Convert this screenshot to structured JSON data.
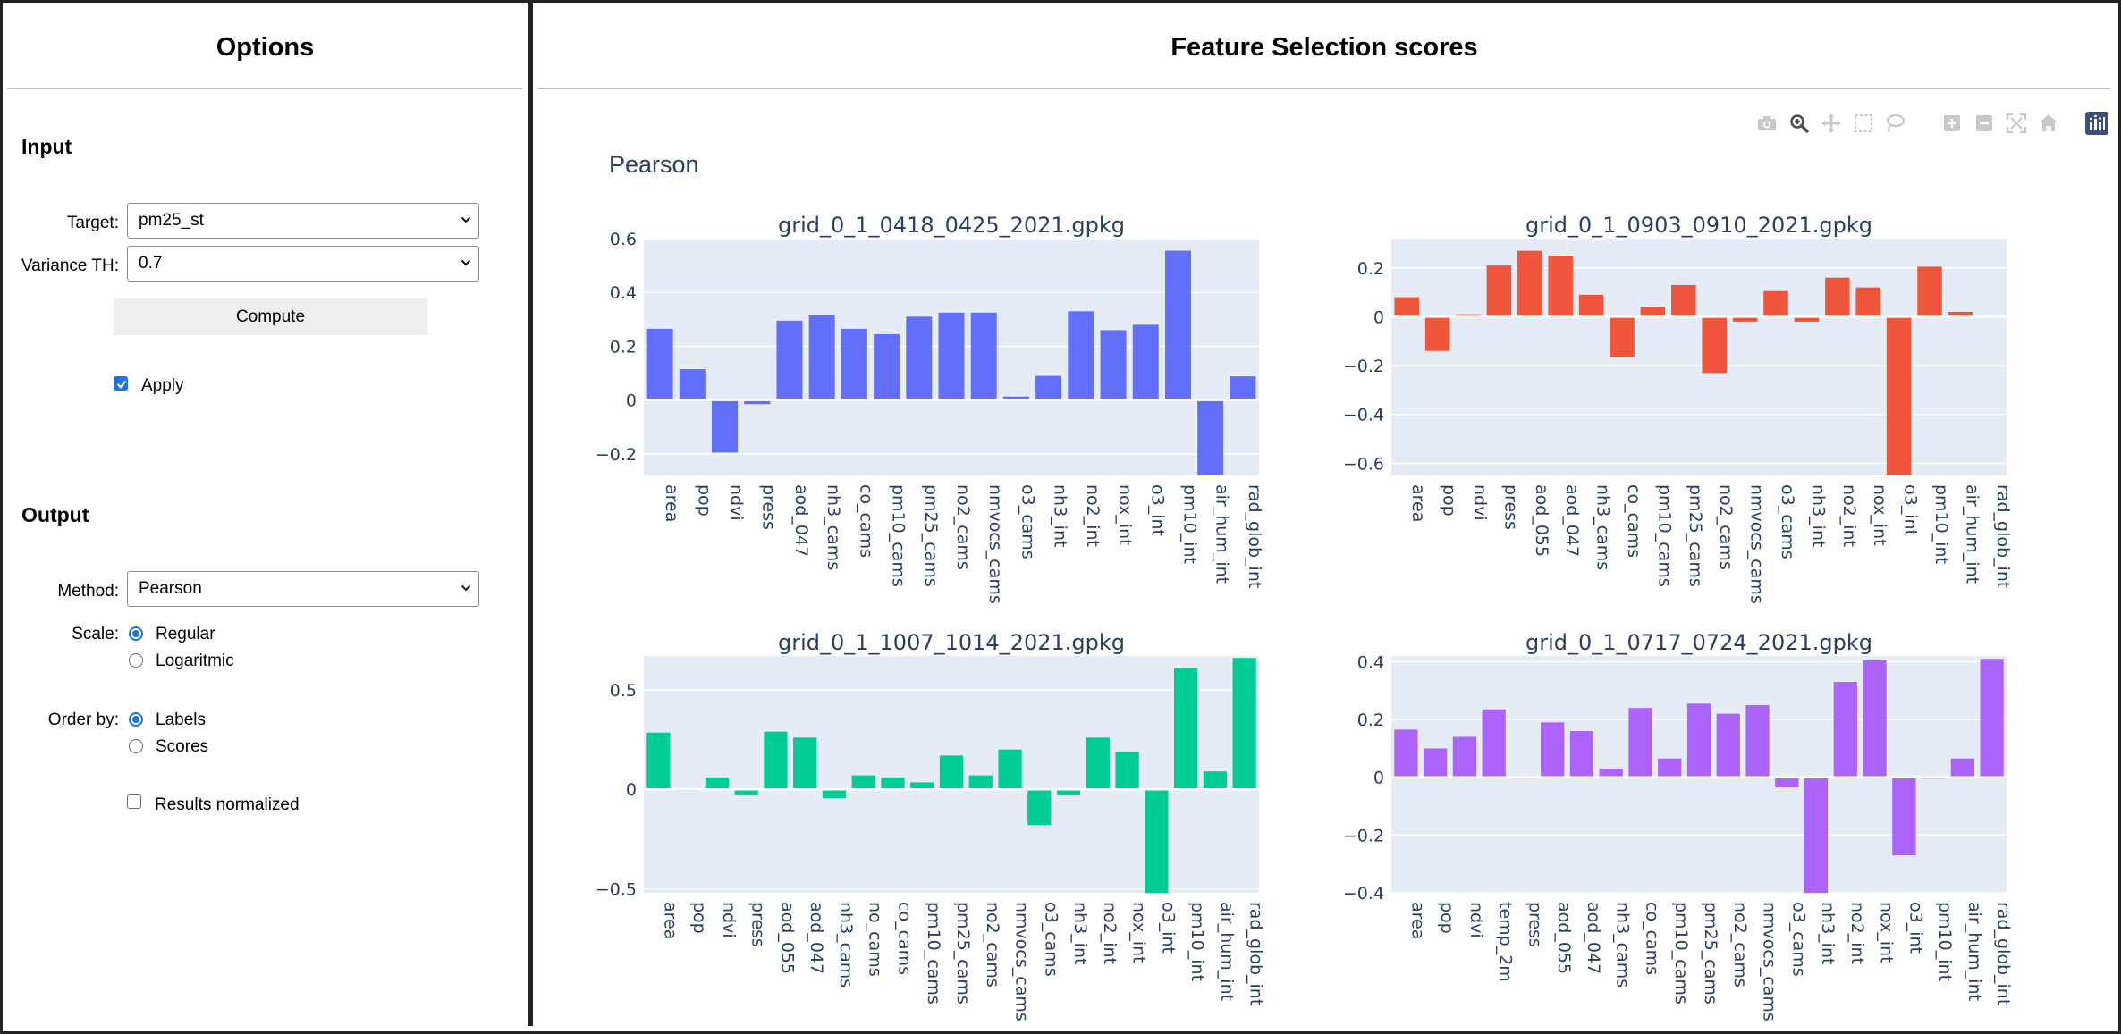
{
  "options_panel": {
    "title": "Options",
    "input": {
      "heading": "Input",
      "target_label": "Target:",
      "target_value": "pm25_st",
      "variance_label": "Variance TH:",
      "variance_value": "0.7",
      "compute_label": "Compute",
      "apply_label": "Apply",
      "apply_checked": true
    },
    "output": {
      "heading": "Output",
      "method_label": "Method:",
      "method_value": "Pearson",
      "scale_label": "Scale:",
      "scale_options": [
        "Regular",
        "Logaritmic"
      ],
      "scale_selected": "Regular",
      "order_label": "Order by:",
      "order_options": [
        "Labels",
        "Scores"
      ],
      "order_selected": "Labels",
      "normalized_label": "Results normalized",
      "normalized_checked": false
    }
  },
  "results_panel": {
    "title": "Feature Selection scores",
    "method_title": "Pearson",
    "modebar_icons": [
      "camera-icon",
      "zoom-icon",
      "pan-icon",
      "box-select-icon",
      "lasso-icon",
      "zoom-in-icon",
      "zoom-out-icon",
      "autoscale-icon",
      "reset-axes-icon",
      "plotly-logo-icon"
    ]
  },
  "colors": {
    "plot_bg": "#e5ecf6",
    "axis_text": "#2a3f5f",
    "accent": "#1a73e8"
  },
  "chart_data": [
    {
      "type": "bar",
      "title": "grid_0_1_0418_0425_2021.gpkg",
      "color": "#636efa",
      "ylim": [
        -0.28,
        0.6
      ],
      "yticks": [
        -0.2,
        0,
        0.2,
        0.4,
        0.6
      ],
      "ytick_labels": [
        "−0.2",
        "0",
        "0.2",
        "0.4",
        "0.6"
      ],
      "categories": [
        "area",
        "pop",
        "ndvi",
        "press",
        "aod_047",
        "nh3_cams",
        "co_cams",
        "pm10_cams",
        "pm25_cams",
        "no2_cams",
        "nmvocs_cams",
        "o3_cams",
        "nh3_int",
        "no2_int",
        "nox_int",
        "o3_int",
        "pm10_int",
        "air_hum_int",
        "rad_glob_int"
      ],
      "values": [
        0.265,
        0.115,
        -0.195,
        -0.015,
        0.295,
        0.315,
        0.265,
        0.245,
        0.31,
        0.325,
        0.325,
        0.013,
        0.09,
        0.33,
        0.26,
        0.28,
        0.555,
        -0.28,
        0.088
      ]
    },
    {
      "type": "bar",
      "title": "grid_0_1_0903_0910_2021.gpkg",
      "color": "#ef553b",
      "ylim": [
        -0.65,
        0.32
      ],
      "yticks": [
        -0.6,
        -0.4,
        -0.2,
        0,
        0.2
      ],
      "ytick_labels": [
        "−0.6",
        "−0.4",
        "−0.2",
        "0",
        "0.2"
      ],
      "categories": [
        "area",
        "pop",
        "ndvi",
        "press",
        "aod_055",
        "aod_047",
        "nh3_cams",
        "co_cams",
        "pm10_cams",
        "pm25_cams",
        "no2_cams",
        "nmvocs_cams",
        "o3_cams",
        "nh3_int",
        "no2_int",
        "nox_int",
        "o3_int",
        "pm10_int",
        "air_hum_int",
        "rad_glob_int"
      ],
      "values": [
        0.08,
        -0.14,
        0.01,
        0.21,
        0.27,
        0.25,
        0.09,
        -0.165,
        0.04,
        0.13,
        -0.23,
        -0.02,
        0.105,
        -0.02,
        0.16,
        0.12,
        -0.65,
        0.205,
        0.02,
        0
      ]
    },
    {
      "type": "bar",
      "title": "grid_0_1_1007_1014_2021.gpkg",
      "color": "#00cc96",
      "ylim": [
        -0.52,
        0.67
      ],
      "yticks": [
        -0.5,
        0,
        0.5
      ],
      "ytick_labels": [
        "−0.5",
        "0",
        "0.5"
      ],
      "categories": [
        "area",
        "pop",
        "ndvi",
        "press",
        "aod_055",
        "aod_047",
        "nh3_cams",
        "no_cams",
        "co_cams",
        "pm10_cams",
        "pm25_cams",
        "no2_cams",
        "nmvocs_cams",
        "o3_cams",
        "nh3_int",
        "no2_int",
        "nox_int",
        "o3_int",
        "pm10_int",
        "air_hum_int",
        "rad_glob_int"
      ],
      "values": [
        0.285,
        -0.005,
        0.06,
        -0.03,
        0.29,
        0.26,
        -0.045,
        0.07,
        0.06,
        0.035,
        0.17,
        0.07,
        0.2,
        -0.18,
        -0.03,
        0.26,
        0.19,
        -0.52,
        0.61,
        0.09,
        0.66
      ]
    },
    {
      "type": "bar",
      "title": "grid_0_1_0717_0724_2021.gpkg",
      "color": "#ab63fa",
      "ylim": [
        -0.4,
        0.42
      ],
      "yticks": [
        -0.4,
        -0.2,
        0,
        0.2,
        0.4
      ],
      "ytick_labels": [
        "−0.4",
        "−0.2",
        "0",
        "0.2",
        "0.4"
      ],
      "categories": [
        "area",
        "pop",
        "ndvi",
        "temp_2m",
        "press",
        "aod_055",
        "aod_047",
        "nh3_cams",
        "co_cams",
        "pm10_cams",
        "pm25_cams",
        "no2_cams",
        "nmvocs_cams",
        "o3_cams",
        "nh3_int",
        "no2_int",
        "nox_int",
        "o3_int",
        "pm10_int",
        "air_hum_int",
        "rad_glob_int"
      ],
      "values": [
        0.165,
        0.1,
        0.14,
        0.235,
        0,
        0.19,
        0.16,
        0.03,
        0.24,
        0.065,
        0.255,
        0.22,
        0.25,
        -0.035,
        -0.4,
        0.33,
        0.405,
        -0.27,
        -0.005,
        0.065,
        0.41
      ]
    }
  ]
}
